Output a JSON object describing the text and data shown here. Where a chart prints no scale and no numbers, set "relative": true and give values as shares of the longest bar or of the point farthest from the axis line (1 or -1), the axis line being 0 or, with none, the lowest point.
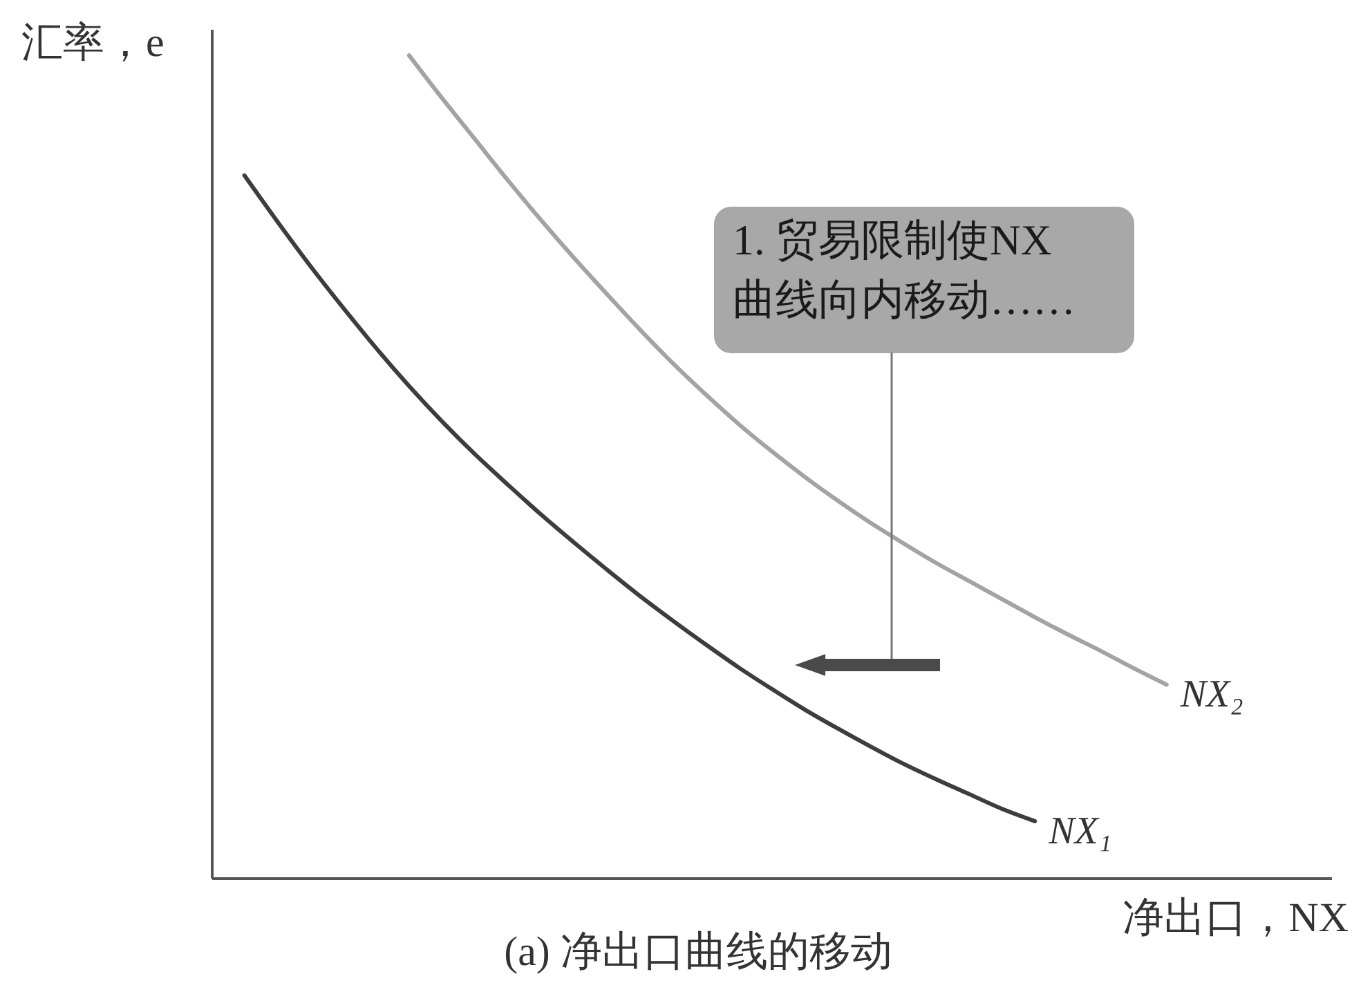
{
  "chart_data": {
    "type": "line",
    "relative": true,
    "title": "(a) 净出口曲线的移动",
    "xlabel": "净出口，NX",
    "ylabel": "汇率，e",
    "categories": [
      null,
      null,
      null,
      null,
      null,
      null,
      null,
      null,
      null,
      null,
      null,
      null,
      null,
      null,
      null,
      null,
      null,
      null,
      null,
      null,
      null,
      null,
      null,
      null,
      null,
      null,
      null,
      null,
      null,
      null,
      null,
      null,
      null,
      null,
      null
    ],
    "series": [
      {
        "name": "NX₁",
        "color": "#3d3d3d",
        "values": [
          null,
          0.854,
          0.798,
          0.744,
          0.693,
          0.644,
          0.598,
          0.555,
          0.515,
          0.478,
          0.442,
          0.408,
          0.375,
          0.343,
          0.313,
          0.284,
          0.256,
          0.23,
          0.205,
          0.182,
          0.16,
          0.139,
          0.12,
          0.102,
          0.084,
          0.069,
          null,
          null,
          null,
          null,
          null,
          null,
          null,
          null,
          null
        ]
      },
      {
        "name": "NX₂",
        "color": "#a3a3a3",
        "values": [
          null,
          null,
          null,
          null,
          null,
          null,
          1.0,
          0.948,
          0.898,
          0.848,
          0.8,
          0.754,
          0.71,
          0.667,
          0.626,
          0.588,
          0.552,
          0.519,
          0.488,
          0.459,
          0.432,
          0.407,
          0.383,
          0.361,
          0.339,
          0.317,
          0.296,
          0.276,
          0.255,
          0.235,
          null,
          null,
          null,
          null,
          null
        ]
      }
    ],
    "annotations": [
      "1. 贸易限制使NX\n曲线向内移动……"
    ],
    "grid": false,
    "legend": false,
    "marker": "none",
    "line_style": "solid"
  }
}
